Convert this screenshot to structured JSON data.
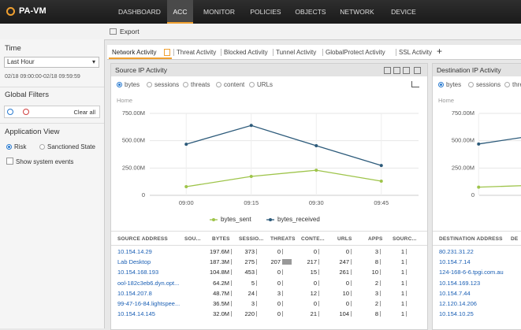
{
  "nav": {
    "logo": "PA-VM",
    "tabs": [
      "DASHBOARD",
      "ACC",
      "MONITOR",
      "POLICIES",
      "OBJECTS",
      "NETWORK",
      "DEVICE"
    ],
    "active": 1
  },
  "toolbar": {
    "export": "Export"
  },
  "sidebar": {
    "time_title": "Time",
    "time_select": "Last Hour",
    "time_range": "02/18 09:00:00-02/18 09:59:59",
    "filters_title": "Global Filters",
    "clear": "Clear all",
    "app_view_title": "Application View",
    "options": [
      "Risk",
      "Sanctioned State"
    ],
    "checkbox": "Show system events"
  },
  "tabs": [
    "Network Activity",
    "Threat Activity",
    "Blocked Activity",
    "Tunnel Activity",
    "GlobalProtect Activity",
    "SSL Activity"
  ],
  "source_panel": {
    "title": "Source IP Activity",
    "radios": [
      "bytes",
      "sessions",
      "threats",
      "content",
      "URLs"
    ],
    "breadcrumb": "Home",
    "chart": {
      "type": "line",
      "categories": [
        "09:00",
        "09:15",
        "09:30",
        "09:45"
      ],
      "series": [
        {
          "name": "bytes_sent",
          "color": "#9ec44a",
          "values": [
            79000000,
            173000000,
            230000000,
            130000000
          ]
        },
        {
          "name": "bytes_received",
          "color": "#2c5a7a",
          "values": [
            468000000,
            640000000,
            454000000,
            273000000
          ]
        }
      ],
      "ylim": [
        0,
        750000000
      ],
      "yticks": [
        {
          "value": 0,
          "label": "0"
        },
        {
          "value": 250000000,
          "label": "250.00M"
        },
        {
          "value": 500000000,
          "label": "500.00M"
        },
        {
          "value": 750000000,
          "label": "750.00M"
        }
      ],
      "grid": true
    },
    "table": {
      "columns": [
        "SOURCE ADDRESS",
        "SOU...",
        "BYTES",
        "SESSIO...",
        "THREATS",
        "CONTE...",
        "URLS",
        "APPS",
        "SOURC..."
      ],
      "rows": [
        [
          "10.154.14.29",
          "",
          "197.6M",
          "373",
          "0",
          "0",
          "0",
          "3",
          "1"
        ],
        [
          "Lab Desktop",
          "",
          "187.3M",
          "275",
          "207",
          "217",
          "247",
          "8",
          "1"
        ],
        [
          "10.154.168.193",
          "",
          "104.8M",
          "453",
          "0",
          "15",
          "261",
          "10",
          "1"
        ],
        [
          "ool-182c3eb6.dyn.opt...",
          "",
          "64.2M",
          "5",
          "0",
          "0",
          "0",
          "2",
          "1"
        ],
        [
          "10.154.207.8",
          "",
          "48.7M",
          "24",
          "3",
          "12",
          "10",
          "3",
          "1"
        ],
        [
          "99-47-16-84.lightspee...",
          "",
          "36.5M",
          "3",
          "0",
          "0",
          "0",
          "2",
          "1"
        ],
        [
          "10.154.14.145",
          "",
          "32.0M",
          "220",
          "0",
          "21",
          "104",
          "8",
          "1"
        ]
      ]
    }
  },
  "destination_panel": {
    "title": "Destination IP Activity",
    "radios": [
      "bytes",
      "sessions",
      "threats"
    ],
    "breadcrumb": "Home",
    "chart": {
      "type": "line",
      "categories": [
        null,
        null
      ],
      "series": [
        {
          "color": "#9ec44a",
          "values": [
            75000000,
            95000000
          ]
        },
        {
          "color": "#2c5a7a",
          "values": [
            470000000,
            560000000
          ]
        }
      ],
      "ylim": [
        0,
        750000000
      ],
      "yticks": [
        {
          "value": 0,
          "label": "0"
        },
        {
          "value": 250000000,
          "label": "250.00M"
        },
        {
          "value": 500000000,
          "label": "500.00M"
        },
        {
          "value": 750000000,
          "label": "750.00M"
        }
      ],
      "grid": true
    },
    "table": {
      "columns": [
        "DESTINATION ADDRESS",
        "DE"
      ],
      "rows": [
        [
          "80.231.31.22"
        ],
        [
          "10.154.7.14"
        ],
        [
          "124-168-6-6.tpgi.com.au"
        ],
        [
          "10.154.169.123"
        ],
        [
          "10.154.7.44"
        ],
        [
          "12.120.14.206"
        ],
        [
          "10.154.10.25"
        ]
      ]
    }
  }
}
